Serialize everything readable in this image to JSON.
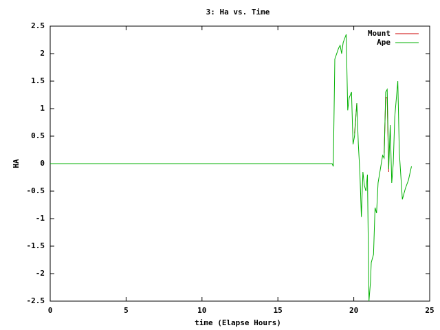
{
  "chart_data": {
    "type": "line",
    "title": "3: Ha vs. Time",
    "x_label": "time (Elapse Hours)",
    "y_label": "HA",
    "x": [
      0,
      18.57,
      18.65,
      18.75,
      19.0,
      19.1,
      19.2,
      19.3,
      19.5,
      19.6,
      19.7,
      19.85,
      19.95,
      20.05,
      20.2,
      20.3,
      20.4,
      20.5,
      20.6,
      20.7,
      20.8,
      20.9,
      21.0,
      21.1,
      21.15,
      21.3,
      21.4,
      21.5,
      21.6,
      21.75,
      21.9,
      22.0,
      22.1,
      22.2,
      22.3,
      22.4,
      22.5,
      22.6,
      22.7,
      22.9,
      23.0,
      23.2,
      23.4,
      23.6,
      23.8
    ],
    "series": [
      {
        "name": "Mount",
        "color": "#cc0000",
        "values": [
          null,
          null,
          null,
          null,
          null,
          null,
          null,
          null,
          null,
          null,
          null,
          null,
          null,
          0.55,
          1.1,
          null,
          null,
          null,
          null,
          null,
          null,
          null,
          null,
          null,
          null,
          null,
          null,
          null,
          null,
          null,
          null,
          0.2,
          1.2,
          1.2,
          -0.15,
          null,
          null,
          null,
          null,
          null,
          null,
          null,
          null,
          null,
          null
        ]
      },
      {
        "name": "Ape",
        "color": "#00b000",
        "values": [
          0,
          0,
          -0.05,
          1.9,
          2.1,
          2.15,
          2.0,
          2.2,
          2.35,
          0.97,
          1.2,
          1.3,
          0.35,
          0.5,
          1.1,
          0.35,
          -0.15,
          -0.97,
          -0.15,
          -0.4,
          -0.5,
          -0.2,
          -2.5,
          -2.15,
          -1.8,
          -1.65,
          -0.8,
          -0.9,
          -0.35,
          -0.1,
          0.15,
          0.1,
          1.3,
          1.35,
          -0.1,
          0.7,
          -0.35,
          0,
          0.85,
          1.5,
          0.2,
          -0.65,
          -0.45,
          -0.3,
          -0.05
        ]
      }
    ],
    "xlim": [
      0,
      25
    ],
    "xticks": [
      0,
      5,
      10,
      15,
      20,
      25
    ],
    "ylim": [
      -2.5,
      2.5
    ],
    "yticks": [
      2.5,
      2,
      1.5,
      1,
      0.5,
      0,
      -0.5,
      -1,
      -1.5,
      -2,
      -2.5
    ],
    "legend": "top-right"
  }
}
